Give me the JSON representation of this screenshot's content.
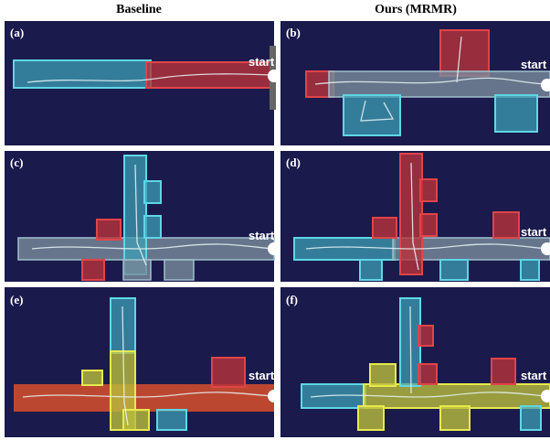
{
  "columns": [
    "Baseline",
    "Ours (MRMR)"
  ],
  "panels": [
    {
      "label": "(a)",
      "annotation": "start"
    },
    {
      "label": "(b)",
      "annotation": "start"
    },
    {
      "label": "(c)",
      "annotation": "start"
    },
    {
      "label": "(d)",
      "annotation": "start"
    },
    {
      "label": "(e)",
      "annotation": "start"
    },
    {
      "label": "(f)",
      "annotation": "start"
    }
  ]
}
